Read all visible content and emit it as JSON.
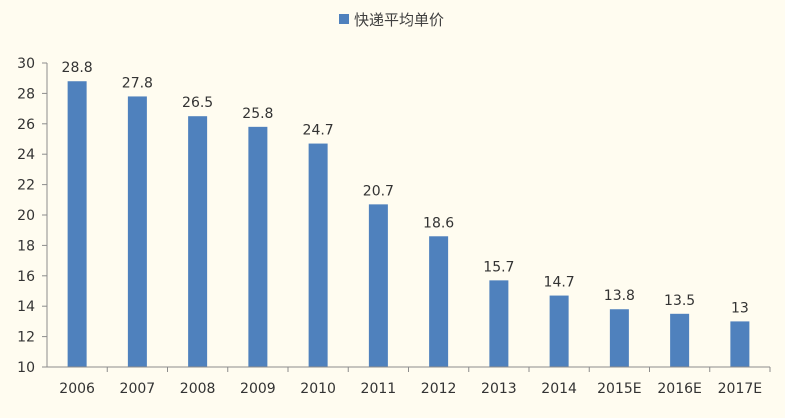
{
  "chart_data": {
    "type": "bar",
    "categories": [
      "2006",
      "2007",
      "2008",
      "2009",
      "2010",
      "2011",
      "2012",
      "2013",
      "2014",
      "2015E",
      "2016E",
      "2017E"
    ],
    "series": [
      {
        "name": "快递平均单价",
        "values": [
          28.8,
          27.8,
          26.5,
          25.8,
          24.7,
          20.7,
          18.6,
          15.7,
          14.7,
          13.8,
          13.5,
          13
        ],
        "labels": [
          "28.8",
          "27.8",
          "26.5",
          "25.8",
          "24.7",
          "20.7",
          "18.6",
          "15.7",
          "14.7",
          "13.8",
          "13.5",
          "13"
        ],
        "color": "#4f81bd"
      }
    ],
    "ylim": [
      10,
      30
    ],
    "yticks": [
      "10",
      "12",
      "14",
      "16",
      "18",
      "20",
      "22",
      "24",
      "26",
      "28",
      "30"
    ],
    "grid": false,
    "legend_position": "top-center",
    "xlabel": "",
    "ylabel": ""
  }
}
